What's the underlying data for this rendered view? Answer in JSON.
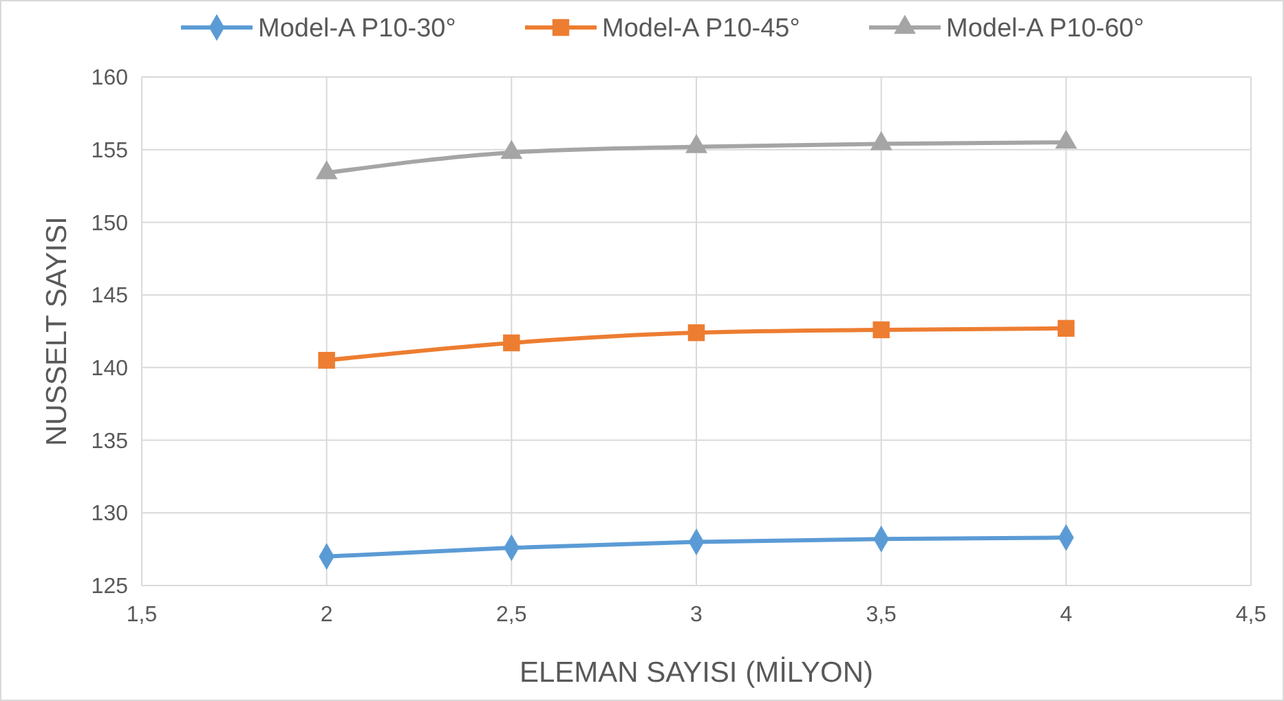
{
  "chart_data": {
    "type": "line",
    "xlabel": "ELEMAN SAYISI (MİLYON)",
    "ylabel": "NUSSELT SAYISI",
    "x": [
      2,
      2.5,
      3,
      3.5,
      4
    ],
    "series": [
      {
        "name": "Model-A P10-30°",
        "color": "#5b9bd5",
        "marker": "diamond",
        "values": [
          127.0,
          127.6,
          128.0,
          128.2,
          128.3
        ]
      },
      {
        "name": "Model-A P10-45°",
        "color": "#ed7d31",
        "marker": "square",
        "values": [
          140.5,
          141.7,
          142.4,
          142.6,
          142.7
        ]
      },
      {
        "name": "Model-A P10-60°",
        "color": "#a5a5a5",
        "marker": "triangle",
        "values": [
          153.4,
          154.8,
          155.2,
          155.4,
          155.5
        ]
      }
    ],
    "xlim": [
      1.5,
      4.5
    ],
    "xticks": [
      {
        "value": 1.5,
        "label": "1,5"
      },
      2,
      {
        "value": 2.5,
        "label": "2,5"
      },
      3,
      {
        "value": 3.5,
        "label": "3,5"
      },
      4,
      {
        "value": 4.5,
        "label": "4,5"
      }
    ],
    "ylim": [
      125,
      160
    ],
    "yticks": [
      125,
      130,
      135,
      140,
      145,
      150,
      155,
      160
    ],
    "grid": true,
    "legend": "top",
    "line_style": "solid"
  }
}
